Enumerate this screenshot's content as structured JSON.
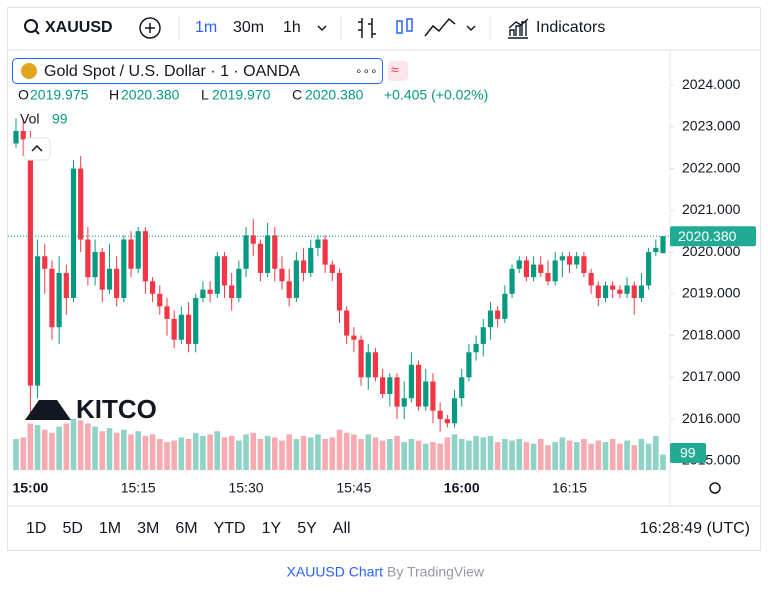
{
  "toolbar": {
    "symbol": "XAUUSD",
    "intervals": [
      "1m",
      "30m",
      "1h"
    ],
    "indicators": "Indicators"
  },
  "legend": {
    "title": "Gold Spot / U.S. Dollar · 1 · OANDA",
    "o_label": "O",
    "o": "2019.975",
    "h_label": "H",
    "h": "2020.380",
    "l_label": "L",
    "l": "2019.970",
    "c_label": "C",
    "c": "2020.380",
    "change": "+0.405 (+0.02%)",
    "vol_label": "Vol"
  },
  "watermark": "KITCO",
  "chart_data": {
    "type": "candlestick",
    "categories": [
      null,
      null,
      "15:00",
      null,
      null,
      null,
      null,
      null,
      null,
      null,
      null,
      null,
      null,
      null,
      null,
      null,
      null,
      "15:15",
      null,
      null,
      null,
      null,
      null,
      null,
      null,
      null,
      null,
      null,
      null,
      null,
      null,
      null,
      "15:30",
      null,
      null,
      null,
      null,
      null,
      null,
      null,
      null,
      null,
      null,
      null,
      null,
      null,
      null,
      "15:45",
      null,
      null,
      null,
      null,
      null,
      null,
      null,
      null,
      null,
      null,
      null,
      null,
      null,
      null,
      "16:00",
      null,
      null,
      null,
      null,
      null,
      null,
      null,
      null,
      null,
      null,
      null,
      null,
      null,
      null,
      "16:15",
      null,
      null,
      null,
      null,
      null,
      null,
      null,
      null,
      null,
      null,
      null,
      null,
      null
    ],
    "open": [
      2022.6,
      2022.9,
      2022.7,
      2016.8,
      2019.9,
      2019.6,
      2018.2,
      2019.5,
      2018.9,
      2022.0,
      2020.3,
      2019.4,
      2020.0,
      2019.1,
      2019.6,
      2018.9,
      2020.3,
      2019.6,
      2020.5,
      2019.3,
      2019.0,
      2018.7,
      2018.4,
      2017.9,
      2018.5,
      2017.8,
      2018.9,
      2019.1,
      2019.0,
      2019.9,
      2019.2,
      2018.9,
      2019.6,
      2020.4,
      2020.2,
      2019.5,
      2020.4,
      2019.6,
      2019.3,
      2018.9,
      2019.8,
      2019.5,
      2020.1,
      2020.3,
      2019.7,
      2019.5,
      2018.6,
      2018.0,
      2017.9,
      2017.0,
      2017.6,
      2017.0,
      2016.6,
      2017.0,
      2016.3,
      2016.5,
      2017.3,
      2016.3,
      2016.9,
      2016.2,
      2016.0,
      2015.9,
      2016.5,
      2017.0,
      2017.6,
      2017.8,
      2018.2,
      2018.6,
      2018.4,
      2019.0,
      2019.6,
      2019.8,
      2019.4,
      2019.7,
      2019.5,
      2019.3,
      2019.8,
      2019.9,
      2019.7,
      2019.9,
      2019.5,
      2019.2,
      2018.9,
      2019.2,
      2019.1,
      2019.0,
      2019.2,
      2018.9,
      2019.2,
      2020.0,
      2019.975
    ],
    "high": [
      2023.2,
      2023.2,
      2022.9,
      2020.3,
      2020.2,
      2019.8,
      2019.9,
      2019.7,
      2022.2,
      2022.3,
      2020.6,
      2020.3,
      2020.1,
      2020.2,
      2019.9,
      2020.4,
      2020.5,
      2020.6,
      2020.6,
      2019.4,
      2019.2,
      2018.9,
      2018.6,
      2018.7,
      2018.8,
      2019.0,
      2019.3,
      2019.3,
      2020.0,
      2020.0,
      2019.5,
      2019.8,
      2020.6,
      2020.8,
      2020.3,
      2020.7,
      2020.6,
      2019.9,
      2019.6,
      2020.0,
      2020.1,
      2020.3,
      2020.4,
      2020.4,
      2019.8,
      2019.6,
      2018.7,
      2018.2,
      2018.0,
      2017.8,
      2017.7,
      2017.2,
      2017.1,
      2017.1,
      2016.9,
      2017.6,
      2017.4,
      2017.2,
      2017.1,
      2016.4,
      2016.1,
      2016.7,
      2017.2,
      2017.8,
      2018.0,
      2018.4,
      2018.8,
      2018.7,
      2019.2,
      2019.7,
      2019.9,
      2019.9,
      2019.9,
      2019.9,
      2019.8,
      2020.0,
      2020.0,
      2020.0,
      2020.0,
      2020.0,
      2019.6,
      2019.3,
      2019.3,
      2019.3,
      2019.2,
      2019.4,
      2019.3,
      2019.5,
      2020.1,
      2020.3,
      2020.38
    ],
    "low": [
      2022.5,
      2022.3,
      2016.1,
      2016.5,
      2019.0,
      2017.9,
      2017.8,
      2018.5,
      2018.8,
      2020.0,
      2019.2,
      2019.2,
      2018.8,
      2019.0,
      2018.7,
      2018.8,
      2019.4,
      2019.5,
      2019.0,
      2018.8,
      2018.5,
      2018.0,
      2017.7,
      2017.8,
      2017.6,
      2017.6,
      2018.8,
      2018.8,
      2018.9,
      2018.9,
      2018.6,
      2018.8,
      2019.4,
      2019.9,
      2019.3,
      2019.4,
      2019.3,
      2019.1,
      2018.7,
      2018.8,
      2019.3,
      2019.4,
      2019.9,
      2019.5,
      2019.3,
      2018.3,
      2017.8,
      2017.6,
      2016.8,
      2016.7,
      2016.9,
      2016.5,
      2016.3,
      2016.0,
      2016.0,
      2016.4,
      2016.2,
      2016.2,
      2015.9,
      2015.7,
      2015.8,
      2015.8,
      2016.3,
      2016.9,
      2017.4,
      2017.5,
      2017.9,
      2018.2,
      2018.3,
      2018.9,
      2019.5,
      2019.3,
      2019.3,
      2019.4,
      2019.2,
      2019.2,
      2019.4,
      2019.5,
      2019.6,
      2019.4,
      2019.0,
      2018.7,
      2018.8,
      2018.9,
      2018.9,
      2018.9,
      2018.5,
      2018.8,
      2019.1,
      2019.9,
      2019.97
    ],
    "close": [
      2022.9,
      2022.7,
      2016.8,
      2019.9,
      2019.6,
      2018.2,
      2019.5,
      2018.9,
      2022.0,
      2020.3,
      2019.4,
      2020.0,
      2019.1,
      2019.6,
      2018.9,
      2020.3,
      2019.6,
      2020.5,
      2019.3,
      2019.0,
      2018.7,
      2018.4,
      2017.9,
      2018.5,
      2017.8,
      2018.9,
      2019.1,
      2019.0,
      2019.9,
      2019.2,
      2018.9,
      2019.6,
      2020.4,
      2020.2,
      2019.5,
      2020.4,
      2019.6,
      2019.3,
      2018.9,
      2019.8,
      2019.5,
      2020.1,
      2020.3,
      2019.7,
      2019.5,
      2018.6,
      2018.0,
      2017.9,
      2017.0,
      2017.6,
      2017.0,
      2016.6,
      2017.0,
      2016.3,
      2016.5,
      2017.3,
      2016.3,
      2016.9,
      2016.2,
      2016.0,
      2015.9,
      2016.5,
      2017.0,
      2017.6,
      2017.8,
      2018.2,
      2018.6,
      2018.4,
      2019.0,
      2019.6,
      2019.8,
      2019.4,
      2019.7,
      2019.5,
      2019.3,
      2019.8,
      2019.9,
      2019.7,
      2019.9,
      2019.5,
      2019.2,
      2018.9,
      2019.2,
      2019.1,
      2019.0,
      2019.2,
      2018.9,
      2019.2,
      2020.0,
      2020.1,
      2020.38
    ],
    "volume": [
      200,
      210,
      300,
      290,
      260,
      240,
      280,
      300,
      330,
      320,
      300,
      280,
      250,
      270,
      240,
      260,
      230,
      250,
      220,
      230,
      200,
      180,
      190,
      210,
      200,
      240,
      220,
      230,
      250,
      210,
      220,
      190,
      230,
      240,
      200,
      220,
      210,
      190,
      230,
      200,
      220,
      210,
      230,
      200,
      210,
      260,
      240,
      230,
      200,
      230,
      210,
      190,
      200,
      220,
      180,
      200,
      190,
      170,
      180,
      170,
      210,
      230,
      200,
      190,
      220,
      210,
      220,
      180,
      200,
      190,
      200,
      180,
      170,
      200,
      160,
      180,
      210,
      190,
      180,
      200,
      170,
      190,
      180,
      200,
      170,
      190,
      160,
      200,
      170,
      220,
      99
    ],
    "value_labels": {
      "volume": "99"
    },
    "ylim": [
      2014.78,
      2024.84
    ],
    "yticks": [
      {
        "value": 2015,
        "label": "2015.000"
      },
      {
        "value": 2016,
        "label": "2016.000"
      },
      {
        "value": 2017,
        "label": "2017.000"
      },
      {
        "value": 2018,
        "label": "2018.000"
      },
      {
        "value": 2019,
        "label": "2019.000"
      },
      {
        "value": 2020,
        "label": "2020.000"
      },
      {
        "value": 2021,
        "label": "2021.000"
      },
      {
        "value": 2022,
        "label": "2022.000"
      },
      {
        "value": 2023,
        "label": "2023.000"
      },
      {
        "value": 2024,
        "label": "2024.000"
      }
    ],
    "last_price": {
      "value": 2020.38,
      "label": "2020.380"
    },
    "up_color": "#089981",
    "down_color": "#f23645",
    "up_volume_color": "#8fd3c7",
    "down_volume_color": "#f7abb1"
  },
  "ranges": [
    "1D",
    "5D",
    "1M",
    "3M",
    "6M",
    "YTD",
    "1Y",
    "5Y",
    "All"
  ],
  "clock": "16:28:49 (UTC)",
  "footer": {
    "link": "XAUUSD Chart",
    "by": "By TradingView"
  }
}
